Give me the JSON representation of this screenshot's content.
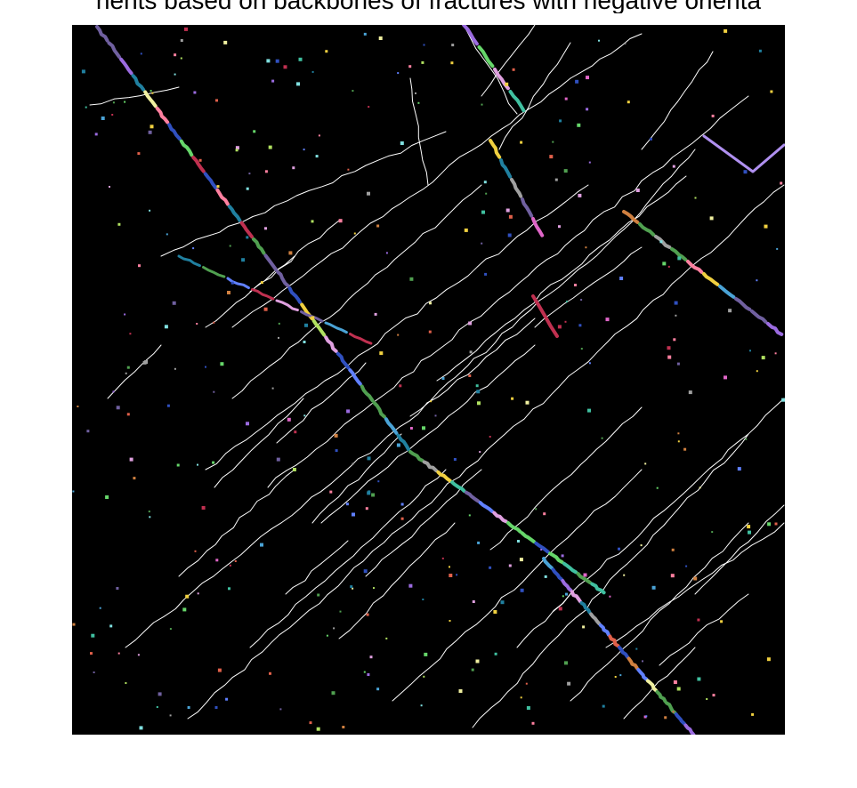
{
  "figure": {
    "title": "nents based on backbones of fractures with negative orienta",
    "background_color": "#000000",
    "line_color": "#ffffff"
  }
}
